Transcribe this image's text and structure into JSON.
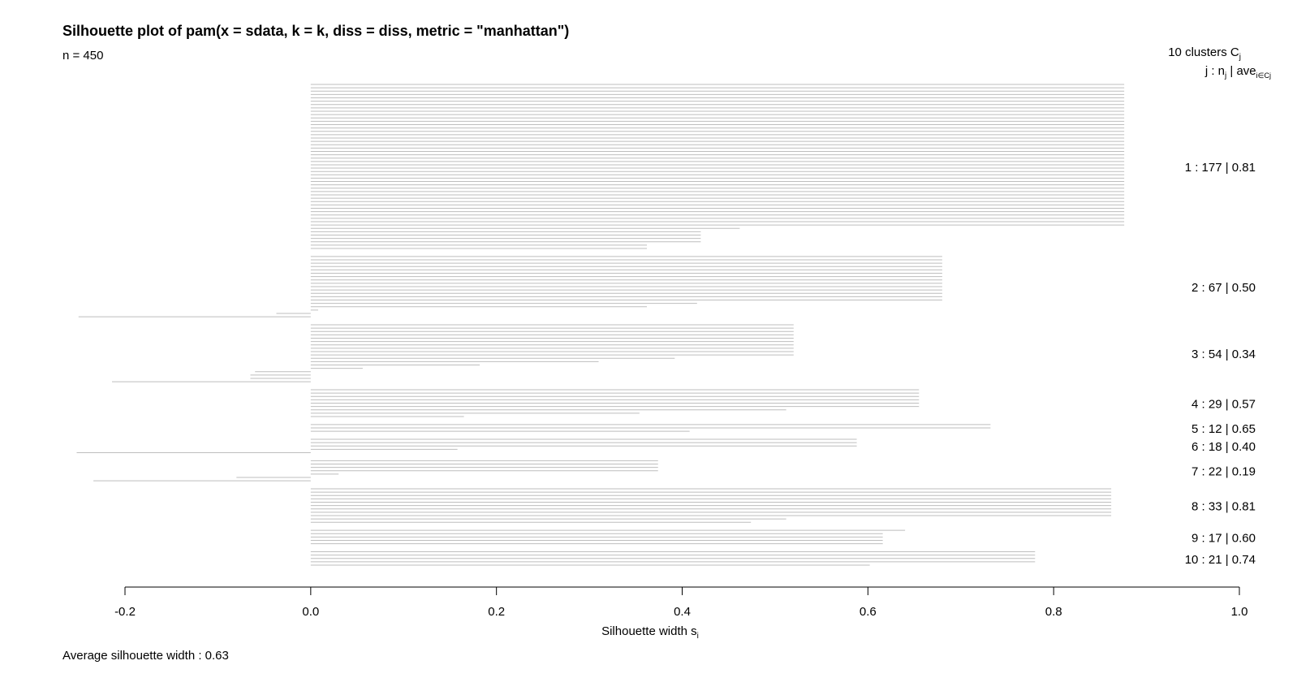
{
  "title": "Silhouette plot of pam(x = sdata, k = k, diss = diss, metric = \"manhattan\")",
  "subtitle": "n = 450",
  "footer": "Average silhouette width :  0.63",
  "colors": {
    "bar": "#bebebe",
    "axis": "#000000"
  },
  "chart_data": {
    "type": "bar",
    "orientation": "horizontal",
    "n": 450,
    "xlabel": "Silhouette width s",
    "xlabel_subscript": "i",
    "xlim": [
      -0.2,
      1.0
    ],
    "x_ticks": [
      -0.2,
      0.0,
      0.2,
      0.4,
      0.6,
      0.8,
      1.0
    ],
    "x_tick_labels": [
      "-0.2",
      "0.0",
      "0.2",
      "0.4",
      "0.6",
      "0.8",
      "1.0"
    ],
    "legend_header": "10  clusters  C",
    "legend_header_subscript": "j",
    "legend_subheader": "j :  n",
    "legend_subheader_sub1": "j",
    "legend_subheader_mid": " | ave",
    "legend_subheader_sub2": "i∈Cj",
    "average_silhouette_width": 0.63,
    "clusters": [
      {
        "label": "1 :   177  |  0.81",
        "id": 1,
        "size": 177,
        "avg": 0.81,
        "segments": [
          [
            43,
            0.876
          ],
          [
            1,
            0.462
          ],
          [
            4,
            0.42
          ],
          [
            2,
            0.362
          ]
        ]
      },
      {
        "label": "2 :   67  |  0.50",
        "id": 2,
        "size": 67,
        "avg": 0.5,
        "segments": [
          [
            14,
            0.68
          ],
          [
            1,
            0.416
          ],
          [
            1,
            0.362
          ],
          [
            1,
            0.008
          ],
          [
            1,
            -0.037
          ],
          [
            1,
            -0.25
          ]
        ]
      },
      {
        "label": "3 :   54  |  0.34",
        "id": 3,
        "size": 54,
        "avg": 0.34,
        "segments": [
          [
            10,
            0.52
          ],
          [
            1,
            0.392
          ],
          [
            1,
            0.31
          ],
          [
            1,
            0.182
          ],
          [
            1,
            0.056
          ],
          [
            1,
            -0.06
          ],
          [
            2,
            -0.065
          ],
          [
            1,
            -0.214
          ]
        ]
      },
      {
        "label": "4 :   29  |  0.57",
        "id": 4,
        "size": 29,
        "avg": 0.57,
        "segments": [
          [
            6,
            0.655
          ],
          [
            1,
            0.512
          ],
          [
            1,
            0.354
          ],
          [
            1,
            0.165
          ]
        ]
      },
      {
        "label": "5 :   12  |  0.65",
        "id": 5,
        "size": 12,
        "avg": 0.65,
        "segments": [
          [
            2,
            0.732
          ],
          [
            1,
            0.408
          ]
        ]
      },
      {
        "label": "6 :   18  |  0.40",
        "id": 6,
        "size": 18,
        "avg": 0.4,
        "segments": [
          [
            3,
            0.588
          ],
          [
            1,
            0.158
          ],
          [
            1,
            -0.252
          ]
        ]
      },
      {
        "label": "7 :   22  |  0.19",
        "id": 7,
        "size": 22,
        "avg": 0.19,
        "segments": [
          [
            4,
            0.374
          ],
          [
            1,
            0.03
          ],
          [
            1,
            -0.08
          ],
          [
            1,
            -0.234
          ]
        ]
      },
      {
        "label": "8 :   33  |  0.81",
        "id": 8,
        "size": 33,
        "avg": 0.81,
        "segments": [
          [
            9,
            0.862
          ],
          [
            1,
            0.512
          ],
          [
            1,
            0.474
          ]
        ]
      },
      {
        "label": "9 :   17  |  0.60",
        "id": 9,
        "size": 17,
        "avg": 0.6,
        "segments": [
          [
            1,
            0.64
          ],
          [
            4,
            0.616
          ]
        ]
      },
      {
        "label": "10 :   21  |  0.74",
        "id": 10,
        "size": 21,
        "avg": 0.74,
        "segments": [
          [
            4,
            0.78
          ],
          [
            1,
            0.602
          ]
        ]
      }
    ]
  }
}
